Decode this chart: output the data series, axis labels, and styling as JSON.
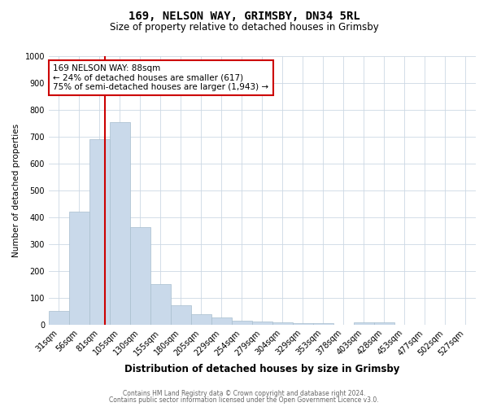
{
  "title1": "169, NELSON WAY, GRIMSBY, DN34 5RL",
  "title2": "Size of property relative to detached houses in Grimsby",
  "xlabel": "Distribution of detached houses by size in Grimsby",
  "ylabel": "Number of detached properties",
  "bin_labels": [
    "31sqm",
    "56sqm",
    "81sqm",
    "105sqm",
    "130sqm",
    "155sqm",
    "180sqm",
    "205sqm",
    "229sqm",
    "254sqm",
    "279sqm",
    "304sqm",
    "329sqm",
    "353sqm",
    "378sqm",
    "403sqm",
    "428sqm",
    "453sqm",
    "477sqm",
    "502sqm",
    "527sqm"
  ],
  "bar_heights": [
    52,
    422,
    690,
    755,
    362,
    152,
    72,
    38,
    27,
    15,
    12,
    8,
    5,
    5,
    0,
    8,
    8,
    0,
    0,
    0,
    0
  ],
  "bar_color": "#c9d9ea",
  "bar_edge_color": "#a8bece",
  "red_line_x": 2.28,
  "red_line_color": "#cc0000",
  "annotation_text": "169 NELSON WAY: 88sqm\n← 24% of detached houses are smaller (617)\n75% of semi-detached houses are larger (1,943) →",
  "annotation_box_color": "#ffffff",
  "annotation_box_edge": "#cc0000",
  "ylim": [
    0,
    1000
  ],
  "yticks": [
    0,
    100,
    200,
    300,
    400,
    500,
    600,
    700,
    800,
    900,
    1000
  ],
  "footer1": "Contains HM Land Registry data © Crown copyright and database right 2024.",
  "footer2": "Contains public sector information licensed under the Open Government Licence v3.0.",
  "bg_color": "#ffffff",
  "grid_color": "#ccd8e4",
  "title1_fontsize": 10,
  "title2_fontsize": 8.5,
  "xlabel_fontsize": 8.5,
  "ylabel_fontsize": 7.5,
  "tick_fontsize": 7,
  "annot_fontsize": 7.5,
  "footer_fontsize": 5.5
}
